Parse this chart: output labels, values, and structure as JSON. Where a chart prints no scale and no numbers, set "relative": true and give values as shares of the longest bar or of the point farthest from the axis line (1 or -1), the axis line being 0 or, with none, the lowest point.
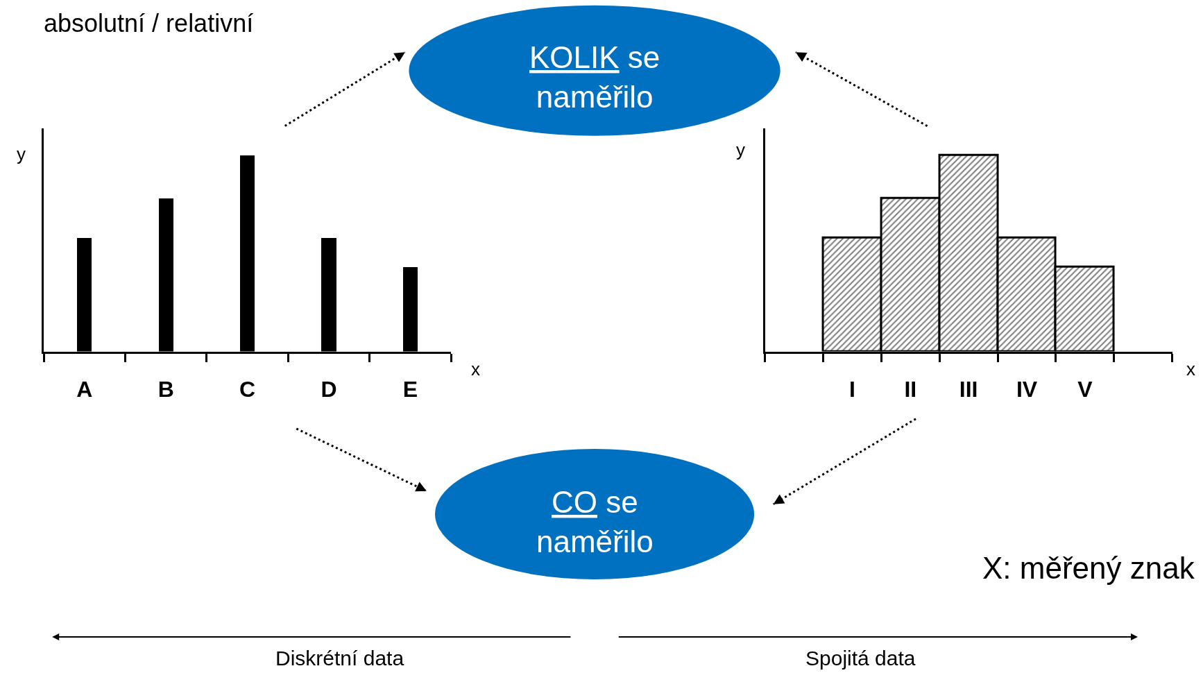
{
  "chart_data": [
    {
      "type": "bar",
      "relative": true,
      "xlabel": "x",
      "ylabel": "y",
      "categories": [
        "A",
        "B",
        "C",
        "D",
        "E"
      ],
      "series": [
        {
          "color": "#000000",
          "values": [
            0.58,
            0.78,
            1,
            0.58,
            0.43
          ]
        }
      ]
    },
    {
      "type": "histogram",
      "relative": true,
      "xlabel": "x",
      "ylabel": "y",
      "categories": [
        "I",
        "II",
        "III",
        "IV",
        "V"
      ],
      "series": [
        {
          "color": "#000000",
          "values": [
            0.58,
            0.78,
            1,
            0.58,
            0.43
          ]
        }
      ]
    },
    {
      "type": "other",
      "annotations": [
        "absolutní / relativní",
        "KOLIK se\nnaměřilo",
        "CO se\nnaměřilo",
        "X: měřený znak",
        "Diskrétní data",
        "Spojitá data"
      ]
    }
  ]
}
